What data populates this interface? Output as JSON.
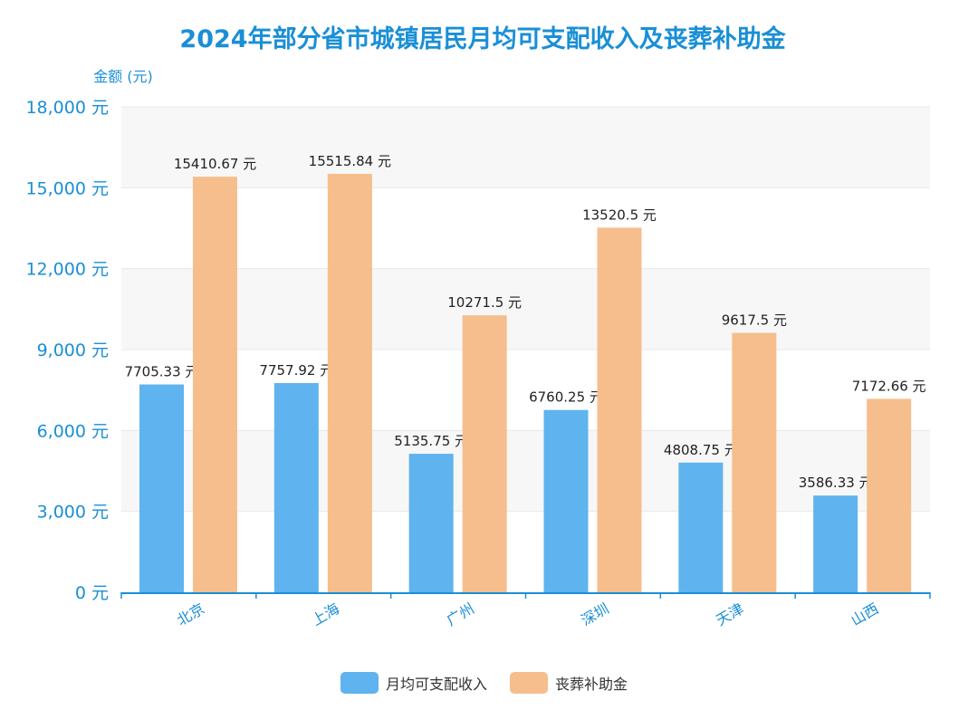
{
  "chart_data": {
    "type": "bar",
    "title": "2024年部分省市城镇居民月均可支配收入及丧葬补助金",
    "ylabel": "金额 (元)",
    "xlabel": "",
    "ylim": [
      0,
      18000
    ],
    "yticks": [
      0,
      3000,
      6000,
      9000,
      12000,
      15000,
      18000
    ],
    "ytick_labels": [
      "0 元",
      "3,000 元",
      "6,000 元",
      "9,000 元",
      "12,000 元",
      "15,000 元",
      "18,000 元"
    ],
    "categories": [
      "北京",
      "上海",
      "广州",
      "深圳",
      "天津",
      "山西"
    ],
    "series": [
      {
        "name": "月均可支配收入",
        "color": "#5fb3ee",
        "values": [
          7705.33,
          7757.92,
          5135.75,
          6760.25,
          4808.75,
          3586.33
        ],
        "labels": [
          "7705.33 元",
          "7757.92 元",
          "5135.75 元",
          "6760.25 元",
          "4808.75 元",
          "3586.33 元"
        ]
      },
      {
        "name": "丧葬补助金",
        "color": "#f6be8d",
        "values": [
          15410.67,
          15515.84,
          10271.5,
          13520.5,
          9617.5,
          7172.66
        ],
        "labels": [
          "15410.67 元",
          "15515.84 元",
          "10271.5 元",
          "13520.5 元",
          "9617.5 元",
          "7172.66 元"
        ]
      }
    ],
    "legend_position": "bottom",
    "grid": true,
    "colors": {
      "title": "#1a8fd6",
      "axis": "#1a8fd6",
      "band": "#f7f7f7",
      "gridline": "#e8e8e8"
    }
  }
}
